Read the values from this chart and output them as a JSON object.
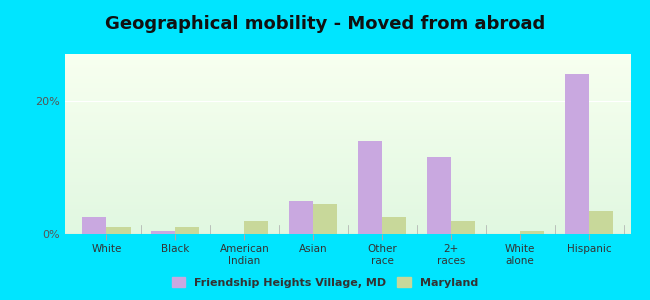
{
  "title": "Geographical mobility - Moved from abroad",
  "categories": [
    "White",
    "Black",
    "American\nIndian",
    "Asian",
    "Other\nrace",
    "2+\nraces",
    "White\nalone",
    "Hispanic"
  ],
  "city_values": [
    2.5,
    0.5,
    0.0,
    5.0,
    14.0,
    11.5,
    0.0,
    24.0
  ],
  "state_values": [
    1.0,
    1.0,
    2.0,
    4.5,
    2.5,
    2.0,
    0.5,
    3.5
  ],
  "city_color": "#c9a8e0",
  "state_color": "#c8d89a",
  "background_outer": "#00e5ff",
  "background_inner_top": "#e8f5e9",
  "background_inner_bottom": "#f5ffe8",
  "plot_bg_top": "#e0f2e0",
  "plot_bg_bottom": "#f0faf0",
  "ylim": [
    0,
    27
  ],
  "yticks": [
    0,
    20
  ],
  "ytick_labels": [
    "0%",
    "20%"
  ],
  "legend_city": "Friendship Heights Village, MD",
  "legend_state": "Maryland",
  "bar_width": 0.35
}
